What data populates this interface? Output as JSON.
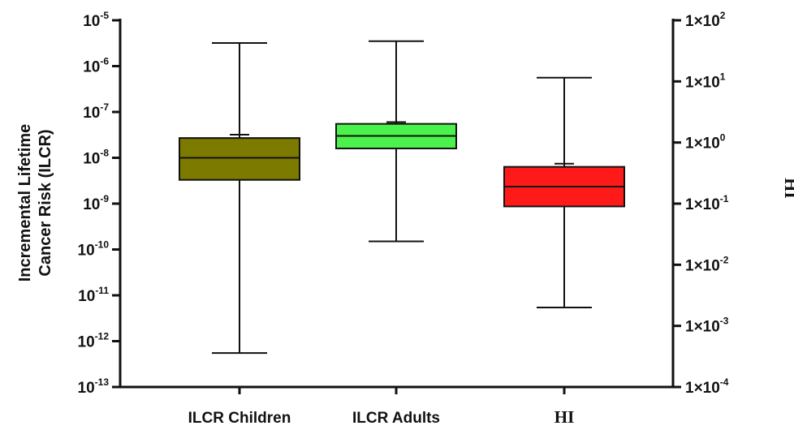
{
  "chart_data": {
    "type": "box",
    "ylabel_lines": [
      "Incremental Lifetime",
      "Cancer Risk (ILCR)"
    ],
    "y2label": "HI",
    "left_axis": {
      "scale": "log",
      "ylim": [
        1e-13,
        1e-05
      ],
      "ticks": [
        {
          "value": 1e-05,
          "base": "10",
          "exp": "-5"
        },
        {
          "value": 1e-06,
          "base": "10",
          "exp": "-6"
        },
        {
          "value": 1e-07,
          "base": "10",
          "exp": "-7"
        },
        {
          "value": 1e-08,
          "base": "10",
          "exp": "-8"
        },
        {
          "value": 1e-09,
          "base": "10",
          "exp": "-9"
        },
        {
          "value": 1e-10,
          "base": "10",
          "exp": "-10"
        },
        {
          "value": 1e-11,
          "base": "10",
          "exp": "-11"
        },
        {
          "value": 1e-12,
          "base": "10",
          "exp": "-12"
        },
        {
          "value": 1e-13,
          "base": "10",
          "exp": "-13"
        }
      ]
    },
    "right_axis": {
      "scale": "log",
      "ylim": [
        0.0001,
        100.0
      ],
      "ticks": [
        {
          "value": 100,
          "base": "1×10",
          "exp": "2"
        },
        {
          "value": 10,
          "base": "1×10",
          "exp": "1"
        },
        {
          "value": 1,
          "base": "1×10",
          "exp": "0"
        },
        {
          "value": 0.1,
          "base": "1×10",
          "exp": "-1"
        },
        {
          "value": 0.01,
          "base": "1×10",
          "exp": "-2"
        },
        {
          "value": 0.001,
          "base": "1×10",
          "exp": "-3"
        },
        {
          "value": 0.0001,
          "base": "1×10",
          "exp": "-4"
        }
      ]
    },
    "boxes": [
      {
        "category": "ILCR Children",
        "axis": "left",
        "color": "#7d7a00",
        "min": 5.5e-13,
        "q1": 3.3e-09,
        "median": 1e-08,
        "q3": 2.7e-08,
        "max": 3.2e-06,
        "mean": 3.2e-08
      },
      {
        "category": "ILCR Adults",
        "axis": "left",
        "color": "#4cf24c",
        "min": 1.5e-10,
        "q1": 1.6e-08,
        "median": 3e-08,
        "q3": 5.5e-08,
        "max": 3.5e-06,
        "mean": 6e-08
      },
      {
        "category": "HI",
        "axis": "right",
        "color": "#ff1a1a",
        "min": 0.002,
        "q1": 0.09,
        "median": 0.19,
        "q3": 0.4,
        "max": 11.5,
        "mean": 0.45
      }
    ]
  }
}
